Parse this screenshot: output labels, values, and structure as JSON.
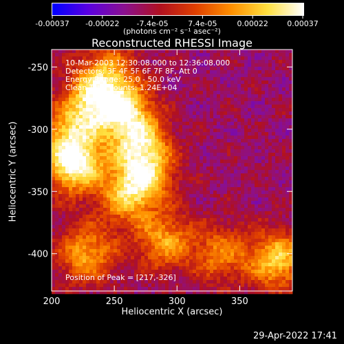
{
  "colorbar": {
    "tick_labels": [
      "-0.00037",
      "-0.00022",
      "-7.4e-05",
      "7.4e-05",
      "0.00022",
      "0.00037"
    ],
    "units_label": "(photons cm⁻² s⁻¹ asec⁻²)",
    "range": [
      -0.00037,
      0.00037
    ],
    "colors": [
      "#0000ff",
      "#5a00e0",
      "#8a1090",
      "#b01020",
      "#e04000",
      "#ff9000",
      "#ffe040",
      "#ffffff"
    ]
  },
  "chart_data": {
    "type": "heatmap",
    "title": "Reconstructed RHESSI Image",
    "xlabel": "Heliocentric X (arcsec)",
    "ylabel": "Heliocentric Y (arcsec)",
    "xlim": [
      200,
      392
    ],
    "ylim": [
      -430,
      -236
    ],
    "x_ticks": [
      200,
      250,
      300,
      350
    ],
    "y_ticks": [
      -250,
      -300,
      -350,
      -400
    ],
    "annotations": [
      "10-Mar-2003 12:30:08.000 to 12:36:08.000",
      "Detectors: 3F 4F 5F 6F 7F 8F, Att 0",
      "Energy Range: 25.0 - 50.0 keV",
      "Clean     Total counts: 1.24E+04"
    ],
    "peak_label": "Position of Peak = [217,-326]",
    "peak": [
      217,
      -326
    ],
    "hotspots": [
      {
        "x": 218,
        "y": -328,
        "value": 0.00037
      },
      {
        "x": 235,
        "y": -275,
        "value": 0.00028
      },
      {
        "x": 258,
        "y": -285,
        "value": 0.00026
      },
      {
        "x": 270,
        "y": -310,
        "value": 0.00024
      },
      {
        "x": 275,
        "y": -335,
        "value": 0.00025
      },
      {
        "x": 260,
        "y": -355,
        "value": 0.00022
      },
      {
        "x": 228,
        "y": -400,
        "value": 0.00023
      },
      {
        "x": 290,
        "y": -390,
        "value": 0.00022
      },
      {
        "x": 335,
        "y": -400,
        "value": 0.00018
      },
      {
        "x": 380,
        "y": -405,
        "value": 0.00028
      },
      {
        "x": 215,
        "y": -300,
        "value": 0.0002
      },
      {
        "x": 245,
        "y": -250,
        "value": 0.00016
      }
    ]
  },
  "footer": {
    "date": "29-Apr-2022 17:41"
  }
}
